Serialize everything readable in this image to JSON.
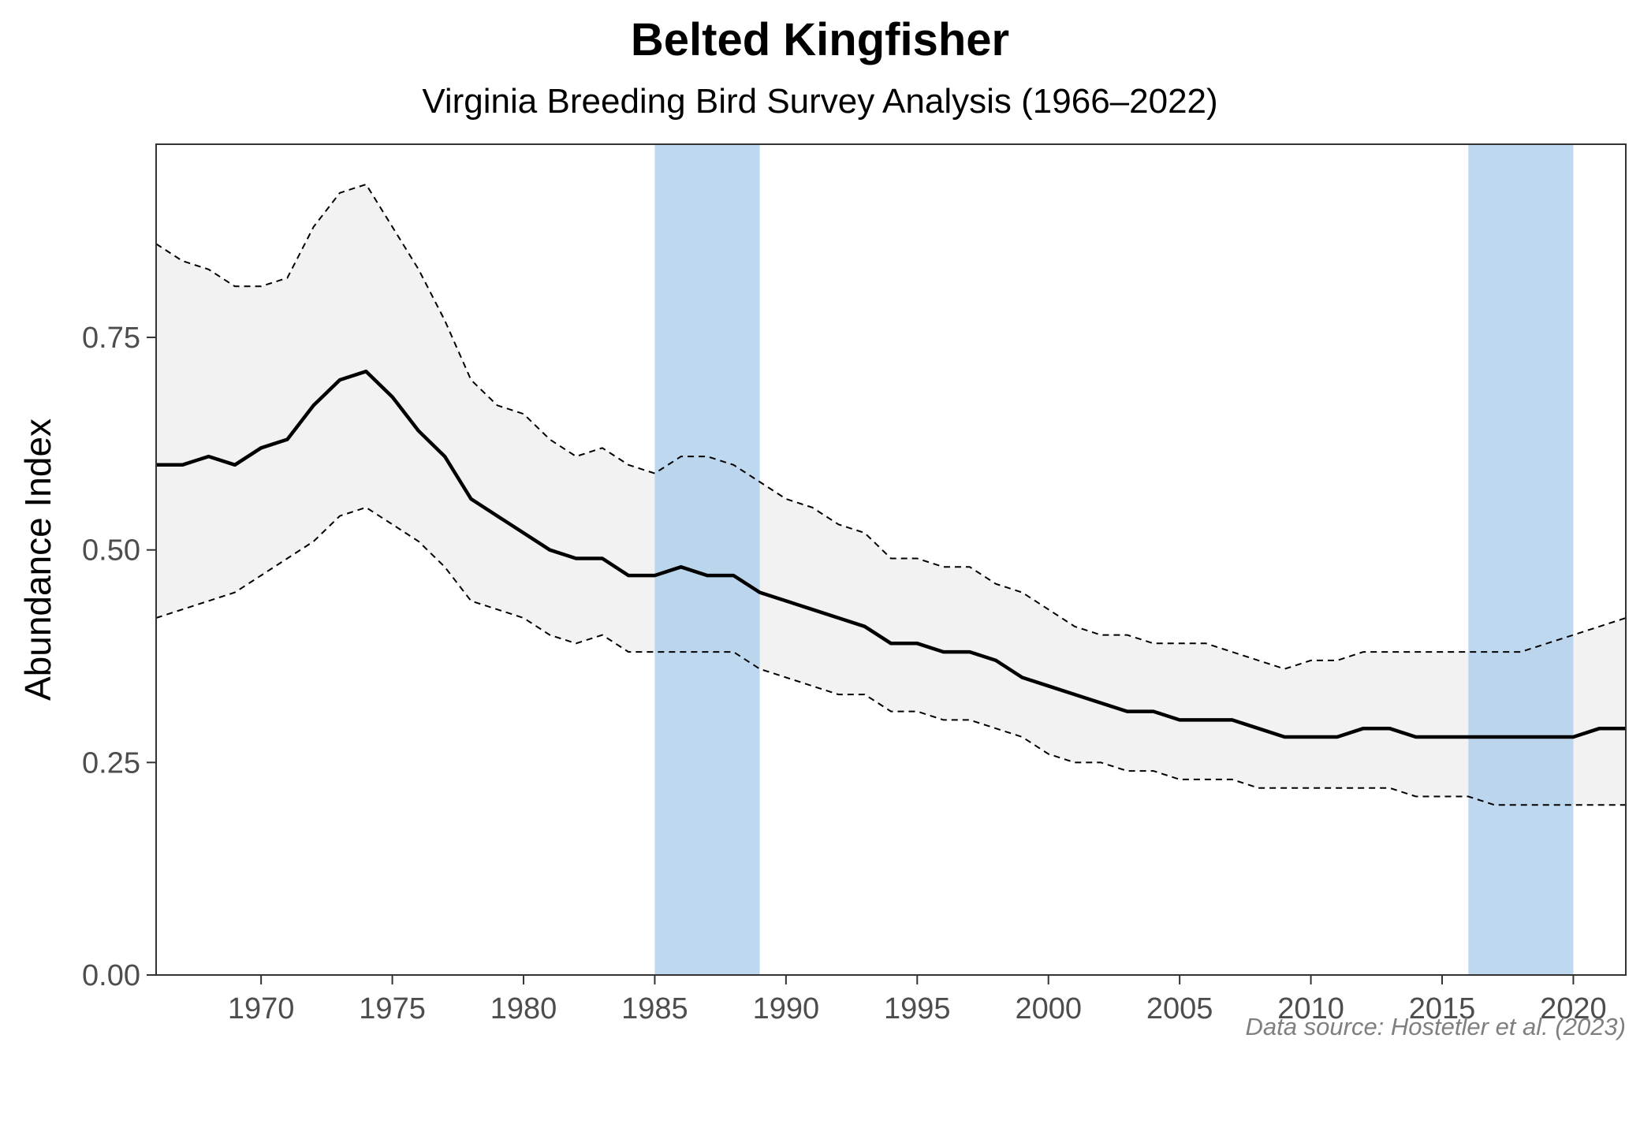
{
  "chart_data": {
    "type": "line",
    "title": "Belted Kingfisher",
    "subtitle": "Virginia Breeding Bird Survey Analysis (1966–2022)",
    "xlabel": "",
    "ylabel": "Abundance Index",
    "caption": "Data source: Hostetler et al. (2023)",
    "xlim": [
      1966,
      2022
    ],
    "ylim": [
      0,
      0.9772
    ],
    "x_ticks": [
      1970,
      1975,
      1980,
      1985,
      1990,
      1995,
      2000,
      2005,
      2010,
      2015,
      2020
    ],
    "x_tick_labels": [
      "1970",
      "1975",
      "1980",
      "1985",
      "1990",
      "1995",
      "2000",
      "2005",
      "2010",
      "2015",
      "2020"
    ],
    "y_ticks": [
      0,
      0.25,
      0.5,
      0.75
    ],
    "y_tick_labels": [
      "0.00",
      "0.25",
      "0.50",
      "0.75"
    ],
    "grid": false,
    "highlight_periods": [
      {
        "start": 1985,
        "end": 1989
      },
      {
        "start": 2016,
        "end": 2020
      }
    ],
    "colors": {
      "line": "#000000",
      "band": "#f2f2f2",
      "highlight": "#a8cbea",
      "axis": "#333333"
    },
    "x": [
      1966,
      1967,
      1968,
      1969,
      1970,
      1971,
      1972,
      1973,
      1974,
      1975,
      1976,
      1977,
      1978,
      1979,
      1980,
      1981,
      1982,
      1983,
      1984,
      1985,
      1986,
      1987,
      1988,
      1989,
      1990,
      1991,
      1992,
      1993,
      1994,
      1995,
      1996,
      1997,
      1998,
      1999,
      2000,
      2001,
      2002,
      2003,
      2004,
      2005,
      2006,
      2007,
      2008,
      2009,
      2010,
      2011,
      2012,
      2013,
      2014,
      2015,
      2016,
      2017,
      2018,
      2019,
      2020,
      2021,
      2022
    ],
    "series": [
      {
        "name": "Abundance Index",
        "values": [
          0.6,
          0.6,
          0.61,
          0.6,
          0.62,
          0.63,
          0.67,
          0.7,
          0.71,
          0.68,
          0.64,
          0.61,
          0.56,
          0.54,
          0.52,
          0.5,
          0.49,
          0.49,
          0.47,
          0.47,
          0.48,
          0.47,
          0.47,
          0.45,
          0.44,
          0.43,
          0.42,
          0.41,
          0.39,
          0.39,
          0.38,
          0.38,
          0.37,
          0.35,
          0.34,
          0.33,
          0.32,
          0.31,
          0.31,
          0.3,
          0.3,
          0.3,
          0.29,
          0.28,
          0.28,
          0.28,
          0.29,
          0.29,
          0.28,
          0.28,
          0.28,
          0.28,
          0.28,
          0.28,
          0.28,
          0.29,
          0.29
        ]
      },
      {
        "name": "Upper 95% CI",
        "values": [
          0.86,
          0.84,
          0.83,
          0.81,
          0.81,
          0.82,
          0.88,
          0.92,
          0.93,
          0.88,
          0.83,
          0.77,
          0.7,
          0.67,
          0.66,
          0.63,
          0.61,
          0.62,
          0.6,
          0.59,
          0.61,
          0.61,
          0.6,
          0.58,
          0.56,
          0.55,
          0.53,
          0.52,
          0.49,
          0.49,
          0.48,
          0.48,
          0.46,
          0.45,
          0.43,
          0.41,
          0.4,
          0.4,
          0.39,
          0.39,
          0.39,
          0.38,
          0.37,
          0.36,
          0.37,
          0.37,
          0.38,
          0.38,
          0.38,
          0.38,
          0.38,
          0.38,
          0.38,
          0.39,
          0.4,
          0.41,
          0.42
        ]
      },
      {
        "name": "Lower 95% CI",
        "values": [
          0.42,
          0.43,
          0.44,
          0.45,
          0.47,
          0.49,
          0.51,
          0.54,
          0.55,
          0.53,
          0.51,
          0.48,
          0.44,
          0.43,
          0.42,
          0.4,
          0.39,
          0.4,
          0.38,
          0.38,
          0.38,
          0.38,
          0.38,
          0.36,
          0.35,
          0.34,
          0.33,
          0.33,
          0.31,
          0.31,
          0.3,
          0.3,
          0.29,
          0.28,
          0.26,
          0.25,
          0.25,
          0.24,
          0.24,
          0.23,
          0.23,
          0.23,
          0.22,
          0.22,
          0.22,
          0.22,
          0.22,
          0.22,
          0.21,
          0.21,
          0.21,
          0.2,
          0.2,
          0.2,
          0.2,
          0.2,
          0.2
        ]
      }
    ]
  }
}
